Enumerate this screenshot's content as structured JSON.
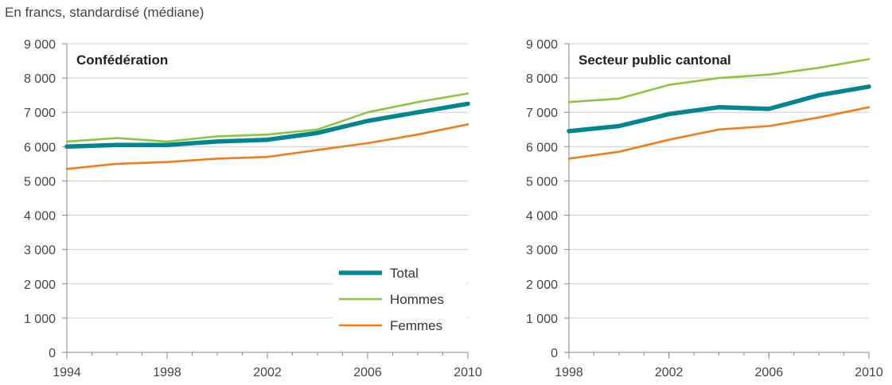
{
  "unit_label": "En francs, standardisé (médiane)",
  "colors": {
    "total": "#00868f",
    "hommes": "#8cc63f",
    "femmes": "#f07d1a",
    "grid": "#cccccc",
    "axis": "#888888"
  },
  "chart_data": [
    {
      "type": "line",
      "title": "Confédération",
      "xlabel": "",
      "ylabel": "",
      "xlim": [
        1994,
        2010
      ],
      "ylim": [
        0,
        9000
      ],
      "x_ticks": [
        1994,
        1998,
        2002,
        2006,
        2010
      ],
      "y_ticks": [
        0,
        1000,
        2000,
        3000,
        4000,
        5000,
        6000,
        7000,
        8000,
        9000
      ],
      "y_tick_labels": [
        "0",
        "1 000",
        "2 000",
        "3 000",
        "4 000",
        "5 000",
        "6 000",
        "7 000",
        "8 000",
        "9 000"
      ],
      "grid": true,
      "legend": "bottom-right",
      "x": [
        1994,
        1996,
        1998,
        2000,
        2002,
        2004,
        2006,
        2008,
        2010
      ],
      "series": [
        {
          "name": "Total",
          "key": "total",
          "values": [
            6000,
            6050,
            6050,
            6150,
            6200,
            6400,
            6750,
            7000,
            7250
          ]
        },
        {
          "name": "Hommes",
          "key": "hommes",
          "values": [
            6150,
            6250,
            6150,
            6300,
            6350,
            6500,
            7000,
            7300,
            7550
          ]
        },
        {
          "name": "Femmes",
          "key": "femmes",
          "values": [
            5350,
            5500,
            5550,
            5650,
            5700,
            5900,
            6100,
            6350,
            6650
          ]
        }
      ]
    },
    {
      "type": "line",
      "title": "Secteur public cantonal",
      "xlabel": "",
      "ylabel": "",
      "xlim": [
        1998,
        2010
      ],
      "ylim": [
        0,
        9000
      ],
      "x_ticks": [
        1998,
        2002,
        2006,
        2010
      ],
      "y_ticks": [
        0,
        1000,
        2000,
        3000,
        4000,
        5000,
        6000,
        7000,
        8000,
        9000
      ],
      "y_tick_labels": [
        "0",
        "1 000",
        "2 000",
        "3 000",
        "4 000",
        "5 000",
        "6 000",
        "7 000",
        "8 000",
        "9 000"
      ],
      "grid": true,
      "x": [
        1998,
        2000,
        2002,
        2004,
        2006,
        2008,
        2010
      ],
      "series": [
        {
          "name": "Total",
          "key": "total",
          "values": [
            6450,
            6600,
            6950,
            7150,
            7100,
            7500,
            7750
          ]
        },
        {
          "name": "Hommes",
          "key": "hommes",
          "values": [
            7300,
            7400,
            7800,
            8000,
            8100,
            8300,
            8550
          ]
        },
        {
          "name": "Femmes",
          "key": "femmes",
          "values": [
            5650,
            5850,
            6200,
            6500,
            6600,
            6850,
            7150
          ]
        }
      ]
    }
  ]
}
